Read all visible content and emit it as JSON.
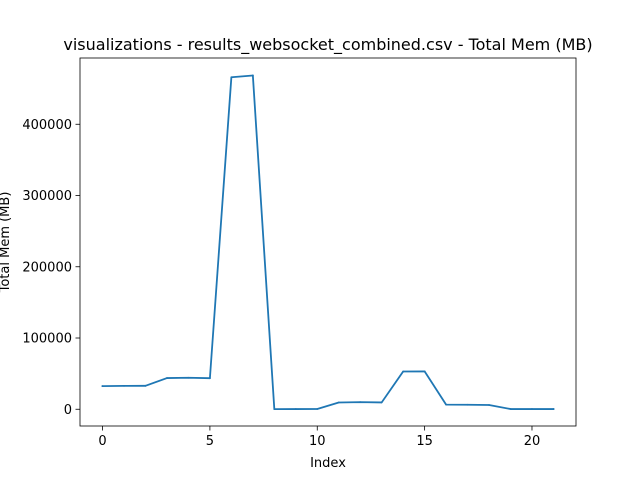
{
  "chart_data": {
    "type": "line",
    "title": "visualizations - results_websocket_combined.csv - Total Mem (MB)",
    "xlabel": "Index",
    "ylabel": "Total Mem (MB)",
    "xlim": [
      -1.05,
      22.05
    ],
    "ylim": [
      -23500,
      493000
    ],
    "xticks": [
      0,
      5,
      10,
      15,
      20
    ],
    "xtick_labels": [
      "0",
      "5",
      "10",
      "15",
      "20"
    ],
    "yticks": [
      0,
      100000,
      200000,
      300000,
      400000
    ],
    "ytick_labels": [
      "0",
      "100000",
      "200000",
      "300000",
      "400000"
    ],
    "grid": false,
    "legend": "none",
    "series": [
      {
        "color": "#1f77b4",
        "x": [
          0,
          1,
          2,
          3,
          4,
          5,
          6,
          7,
          8,
          9,
          10,
          11,
          12,
          13,
          14,
          15,
          16,
          17,
          18,
          19,
          20,
          21
        ],
        "values": [
          32500,
          32800,
          32900,
          43800,
          44200,
          43600,
          466000,
          468500,
          200,
          300,
          400,
          9500,
          10000,
          9600,
          53000,
          53200,
          6500,
          6300,
          6000,
          300,
          300,
          300
        ]
      }
    ]
  }
}
